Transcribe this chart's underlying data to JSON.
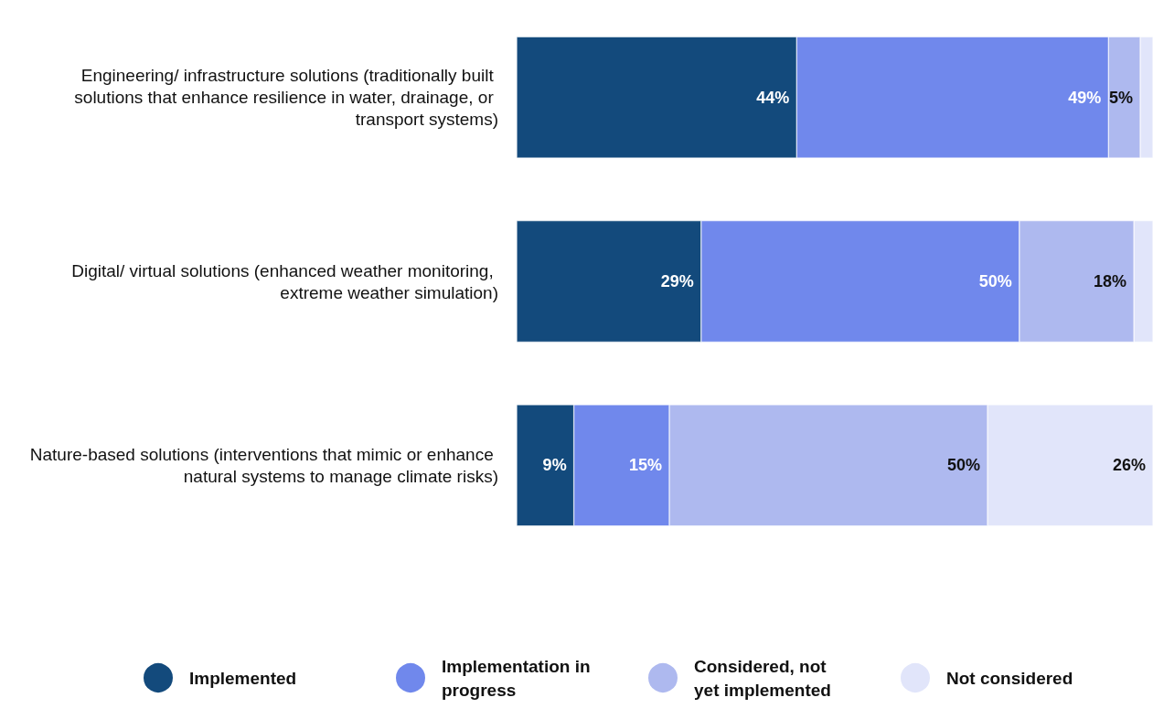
{
  "chart_data": {
    "type": "bar",
    "orientation": "horizontal",
    "stacked": true,
    "data_labels": false,
    "legend": "bottom",
    "tick_labels": "y",
    "categories": [
      "Engineering/ infrastructure solutions (traditionally built solutions that enhance resilience in water, drainage, or transport systems)",
      "Digital/ virtual solutions (enhanced weather monitoring, extreme weather simulation)",
      "Nature-based solutions (interventions that mimic or enhance natural systems to manage climate risks)"
    ],
    "series": [
      {
        "name": "Implemented",
        "color": "#134a7c",
        "values": [
          44,
          29,
          9
        ],
        "value_labels": [
          "44%",
          "29%",
          "9%"
        ]
      },
      {
        "name": "Implementation in progress",
        "color": "#7088ec",
        "values": [
          49,
          50,
          15
        ],
        "value_labels": [
          "49%",
          "50%",
          "15%"
        ]
      },
      {
        "name": "Considered, not yet implemented",
        "color": "#aeb9ef",
        "values": [
          5,
          18,
          50
        ],
        "value_labels": [
          "5%",
          "18%",
          "50%"
        ]
      },
      {
        "name": "Not considered",
        "color": "#e1e5fa",
        "values": [
          2,
          3,
          26
        ],
        "value_labels": [
          null,
          null,
          "26%"
        ]
      }
    ]
  }
}
